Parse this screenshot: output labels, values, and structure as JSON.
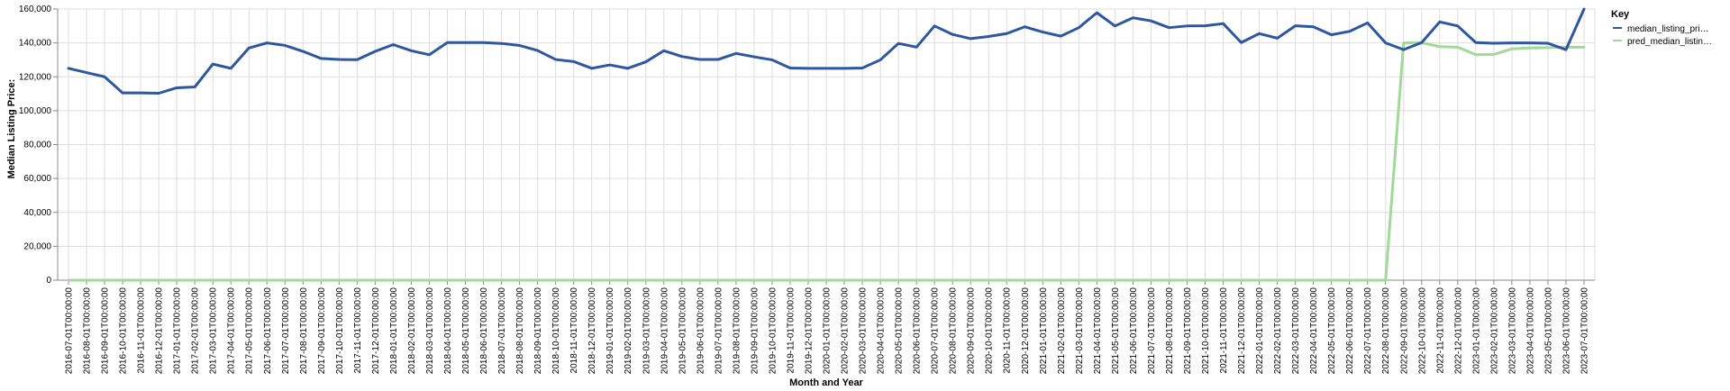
{
  "chart_data": {
    "type": "line",
    "xlabel": "Month and Year",
    "ylabel": "Median Listing Price:",
    "ylim": [
      0,
      160000
    ],
    "yticks": [
      "0",
      "20,000",
      "40,000",
      "60,000",
      "80,000",
      "100,000",
      "120,000",
      "140,000",
      "160,000"
    ],
    "grid": true,
    "legend": {
      "title": "Key",
      "placement": "right",
      "labels": [
        "median_listing_pri…",
        "pred_median_listin…"
      ]
    },
    "x": [
      "2016-07-01T00:00:00",
      "2016-08-01T00:00:00",
      "2016-09-01T00:00:00",
      "2016-10-01T00:00:00",
      "2016-11-01T00:00:00",
      "2016-12-01T00:00:00",
      "2017-01-01T00:00:00",
      "2017-02-01T00:00:00",
      "2017-03-01T00:00:00",
      "2017-04-01T00:00:00",
      "2017-05-01T00:00:00",
      "2017-06-01T00:00:00",
      "2017-07-01T00:00:00",
      "2017-08-01T00:00:00",
      "2017-09-01T00:00:00",
      "2017-10-01T00:00:00",
      "2017-11-01T00:00:00",
      "2017-12-01T00:00:00",
      "2018-01-01T00:00:00",
      "2018-02-01T00:00:00",
      "2018-03-01T00:00:00",
      "2018-04-01T00:00:00",
      "2018-05-01T00:00:00",
      "2018-06-01T00:00:00",
      "2018-07-01T00:00:00",
      "2018-08-01T00:00:00",
      "2018-09-01T00:00:00",
      "2018-10-01T00:00:00",
      "2018-11-01T00:00:00",
      "2018-12-01T00:00:00",
      "2019-01-01T00:00:00",
      "2019-02-01T00:00:00",
      "2019-03-01T00:00:00",
      "2019-04-01T00:00:00",
      "2019-05-01T00:00:00",
      "2019-06-01T00:00:00",
      "2019-07-01T00:00:00",
      "2019-08-01T00:00:00",
      "2019-09-01T00:00:00",
      "2019-10-01T00:00:00",
      "2019-11-01T00:00:00",
      "2019-12-01T00:00:00",
      "2020-01-01T00:00:00",
      "2020-02-01T00:00:00",
      "2020-03-01T00:00:00",
      "2020-04-01T00:00:00",
      "2020-05-01T00:00:00",
      "2020-06-01T00:00:00",
      "2020-07-01T00:00:00",
      "2020-08-01T00:00:00",
      "2020-09-01T00:00:00",
      "2020-10-01T00:00:00",
      "2020-11-01T00:00:00",
      "2020-12-01T00:00:00",
      "2021-01-01T00:00:00",
      "2021-02-01T00:00:00",
      "2021-03-01T00:00:00",
      "2021-04-01T00:00:00",
      "2021-05-01T00:00:00",
      "2021-06-01T00:00:00",
      "2021-07-01T00:00:00",
      "2021-08-01T00:00:00",
      "2021-09-01T00:00:00",
      "2021-10-01T00:00:00",
      "2021-11-01T00:00:00",
      "2021-12-01T00:00:00",
      "2022-01-01T00:00:00",
      "2022-02-01T00:00:00",
      "2022-03-01T00:00:00",
      "2022-04-01T00:00:00",
      "2022-05-01T00:00:00",
      "2022-06-01T00:00:00",
      "2022-07-01T00:00:00",
      "2022-08-01T00:00:00",
      "2022-09-01T00:00:00",
      "2022-10-01T00:00:00",
      "2022-11-01T00:00:00",
      "2022-12-01T00:00:00",
      "2023-01-01T00:00:00",
      "2023-02-01T00:00:00",
      "2023-03-01T00:00:00",
      "2023-04-01T00:00:00",
      "2023-05-01T00:00:00",
      "2023-06-01T00:00:00",
      "2023-07-01T00:00:00"
    ],
    "series": [
      {
        "name": "median_listing_pri…",
        "color": "#2f57a0",
        "values": [
          125000,
          122500,
          120000,
          110500,
          110500,
          110300,
          113500,
          114000,
          127500,
          125000,
          137000,
          140000,
          138500,
          135000,
          130800,
          130200,
          130100,
          135000,
          139000,
          135400,
          133000,
          140200,
          140200,
          140200,
          139700,
          138500,
          135500,
          130200,
          129000,
          125000,
          127000,
          125000,
          128800,
          135400,
          132000,
          130200,
          130200,
          133800,
          131800,
          130000,
          125200,
          125000,
          125000,
          125000,
          125200,
          130000,
          139700,
          137500,
          150000,
          145000,
          142500,
          143800,
          145500,
          149500,
          146400,
          144000,
          149000,
          157800,
          150000,
          154800,
          153000,
          149000,
          150000,
          150100,
          151400,
          140200,
          145500,
          142800,
          150100,
          149500,
          144800,
          146800,
          151800,
          140000,
          136000,
          140200,
          152400,
          150000,
          140200,
          139800,
          140000,
          140000,
          139800,
          136000,
          160000
        ]
      },
      {
        "name": "pred_median_listin…",
        "color": "#a2d89a",
        "values": [
          0,
          0,
          0,
          0,
          0,
          0,
          0,
          0,
          0,
          0,
          0,
          0,
          0,
          0,
          0,
          0,
          0,
          0,
          0,
          0,
          0,
          0,
          0,
          0,
          0,
          0,
          0,
          0,
          0,
          0,
          0,
          0,
          0,
          0,
          0,
          0,
          0,
          0,
          0,
          0,
          0,
          0,
          0,
          0,
          0,
          0,
          0,
          0,
          0,
          0,
          0,
          0,
          0,
          0,
          0,
          0,
          0,
          0,
          0,
          0,
          0,
          0,
          0,
          0,
          0,
          0,
          0,
          0,
          0,
          0,
          0,
          0,
          0,
          0,
          140000,
          140100,
          137800,
          137500,
          133000,
          133200,
          136500,
          137000,
          137200,
          137500,
          137500
        ]
      }
    ]
  }
}
